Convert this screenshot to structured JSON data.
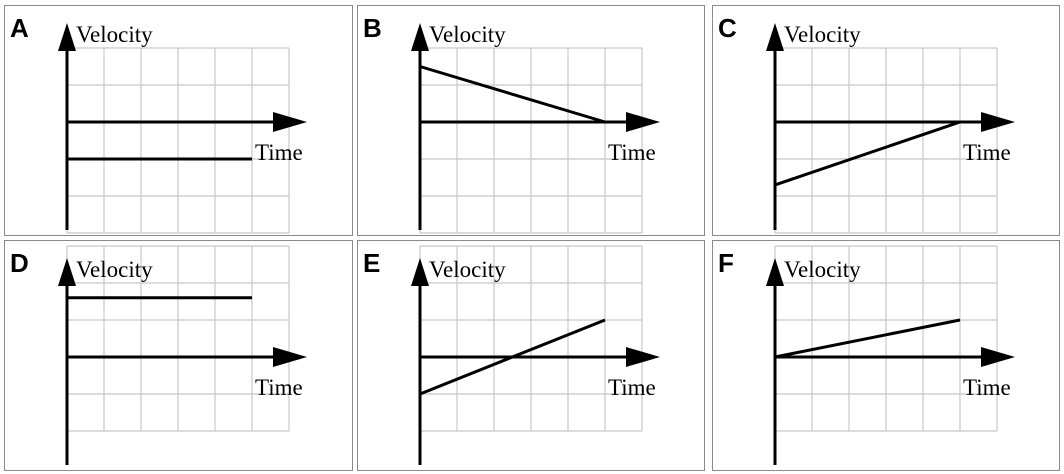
{
  "colors": {
    "grid": "#c8c8c8",
    "axis": "#000000",
    "border": "#8a8a8a",
    "line": "#000000",
    "background": "#ffffff"
  },
  "chart_data": [
    {
      "type": "line",
      "label": "A",
      "xlabel": "Time",
      "ylabel": "Velocity",
      "xlim": [
        0,
        6
      ],
      "ylim": [
        -3,
        2
      ],
      "grid": true,
      "x": [
        0,
        5
      ],
      "y": [
        -1,
        -1
      ]
    },
    {
      "type": "line",
      "label": "B",
      "xlabel": "Time",
      "ylabel": "Velocity",
      "xlim": [
        0,
        6
      ],
      "ylim": [
        -3,
        2
      ],
      "grid": true,
      "x": [
        0,
        5
      ],
      "y": [
        1.5,
        0
      ]
    },
    {
      "type": "line",
      "label": "C",
      "xlabel": "Time",
      "ylabel": "Velocity",
      "xlim": [
        0,
        6
      ],
      "ylim": [
        -3,
        2
      ],
      "grid": true,
      "x": [
        0,
        5
      ],
      "y": [
        -1.7,
        0
      ]
    },
    {
      "type": "line",
      "label": "D",
      "xlabel": "Time",
      "ylabel": "Velocity",
      "xlim": [
        0,
        6
      ],
      "ylim": [
        -2,
        3
      ],
      "grid": true,
      "x": [
        0,
        5
      ],
      "y": [
        1.6,
        1.6
      ]
    },
    {
      "type": "line",
      "label": "E",
      "xlabel": "Time",
      "ylabel": "Velocity",
      "xlim": [
        0,
        6
      ],
      "ylim": [
        -2,
        3
      ],
      "grid": true,
      "x": [
        0,
        5
      ],
      "y": [
        -1,
        1
      ]
    },
    {
      "type": "line",
      "label": "F",
      "xlabel": "Time",
      "ylabel": "Velocity",
      "xlim": [
        0,
        6
      ],
      "ylim": [
        -2,
        3
      ],
      "grid": true,
      "x": [
        0,
        5
      ],
      "y": [
        0,
        1
      ]
    }
  ]
}
